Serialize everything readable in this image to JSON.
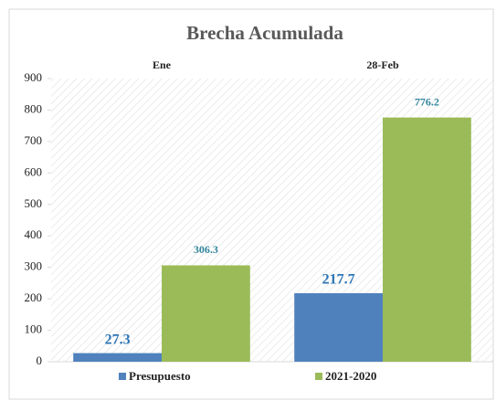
{
  "chart_data": {
    "type": "bar",
    "title": "Brecha Acumulada",
    "categories": [
      "Ene",
      "28-Feb"
    ],
    "series": [
      {
        "name": "Presupuesto",
        "color": "#4f81bd",
        "values": [
          27.3,
          217.7
        ]
      },
      {
        "name": "2021-2020",
        "color": "#9bbb59",
        "values": [
          306.3,
          776.2
        ]
      }
    ],
    "ylim": [
      0,
      900
    ],
    "yticks": [
      0,
      100,
      200,
      300,
      400,
      500,
      600,
      700,
      800,
      900
    ],
    "legend": "bottom"
  }
}
